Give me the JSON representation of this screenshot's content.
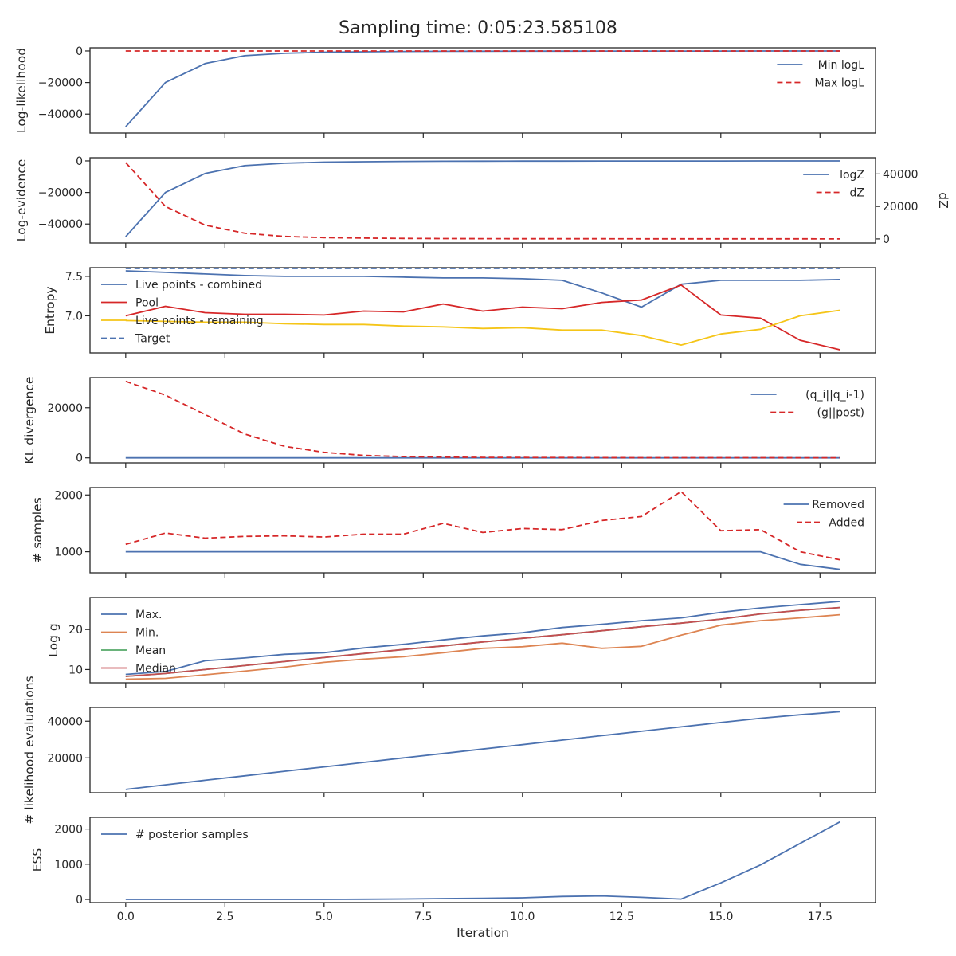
{
  "title": "Sampling time: 0:05:23.585108",
  "chart_data": [
    {
      "type": "line",
      "ylabel": "Log-likelihood",
      "ylim": [
        -52000,
        2000
      ],
      "yticks": [
        0,
        -20000,
        -40000
      ],
      "ytick_labels": [
        "0",
        "−20000",
        "−40000"
      ],
      "x": [
        0,
        1,
        2,
        3,
        4,
        5,
        6,
        7,
        8,
        9,
        10,
        11,
        12,
        13,
        14,
        15,
        16,
        17,
        18
      ],
      "legend_loc": "upper right",
      "series": [
        {
          "name": "Min logL",
          "color": "#4c72b0",
          "dash": "solid",
          "values": [
            -48000,
            -20000,
            -8000,
            -3000,
            -1500,
            -800,
            -500,
            -300,
            -200,
            -150,
            -120,
            -100,
            -80,
            -70,
            -60,
            -50,
            -40,
            -30,
            -20
          ]
        },
        {
          "name": "Max logL",
          "color": "#d62728",
          "dash": "dashed",
          "values": [
            0,
            0,
            0,
            0,
            0,
            0,
            0,
            0,
            0,
            0,
            0,
            0,
            0,
            0,
            0,
            0,
            0,
            0,
            0
          ]
        }
      ]
    },
    {
      "type": "line",
      "ylabel": "Log-evidence",
      "ylabel_right": "dZ",
      "ylim": [
        -52000,
        2000
      ],
      "yticks": [
        0,
        -20000,
        -40000
      ],
      "ytick_labels": [
        "0",
        "−20000",
        "−40000"
      ],
      "ylim_right": [
        -2500,
        50000
      ],
      "yticks_right": [
        0,
        20000,
        40000
      ],
      "ytick_labels_right": [
        "0",
        "20000",
        "40000"
      ],
      "x": [
        0,
        1,
        2,
        3,
        4,
        5,
        6,
        7,
        8,
        9,
        10,
        11,
        12,
        13,
        14,
        15,
        16,
        17,
        18
      ],
      "legend_loc": "upper right",
      "series": [
        {
          "name": "logZ",
          "color": "#4c72b0",
          "dash": "solid",
          "axis": "left",
          "values": [
            -48000,
            -20000,
            -8000,
            -3000,
            -1500,
            -800,
            -500,
            -300,
            -200,
            -150,
            -120,
            -100,
            -80,
            -70,
            -60,
            -50,
            -40,
            -30,
            -20
          ]
        },
        {
          "name": "dZ",
          "color": "#d62728",
          "dash": "dashed",
          "axis": "right",
          "values": [
            47000,
            20000,
            8500,
            3500,
            1500,
            800,
            500,
            300,
            200,
            150,
            120,
            100,
            80,
            70,
            60,
            50,
            40,
            30,
            20
          ]
        }
      ]
    },
    {
      "type": "line",
      "ylabel": "Entropy",
      "ylim": [
        6.53,
        7.61
      ],
      "yticks": [
        7.5,
        7.0
      ],
      "ytick_labels": [
        "7.5",
        "7.0"
      ],
      "x": [
        0,
        1,
        2,
        3,
        4,
        5,
        6,
        7,
        8,
        9,
        10,
        11,
        12,
        13,
        14,
        15,
        16,
        17,
        18
      ],
      "legend_loc": "upper left",
      "series": [
        {
          "name": "Live points - combined",
          "color": "#4c72b0",
          "dash": "solid",
          "values": [
            7.57,
            7.55,
            7.53,
            7.51,
            7.5,
            7.5,
            7.5,
            7.49,
            7.48,
            7.48,
            7.47,
            7.45,
            7.29,
            7.11,
            7.4,
            7.45,
            7.45,
            7.45,
            7.46
          ]
        },
        {
          "name": "Pool",
          "color": "#d62728",
          "dash": "solid",
          "values": [
            7.0,
            7.12,
            7.04,
            7.02,
            7.02,
            7.01,
            7.06,
            7.05,
            7.15,
            7.06,
            7.11,
            7.09,
            7.17,
            7.2,
            7.39,
            7.01,
            6.97,
            6.69,
            6.57
          ]
        },
        {
          "name": "Live points - remaining",
          "color": "#f5c518",
          "dash": "solid",
          "values": [
            6.94,
            6.93,
            6.92,
            6.92,
            6.9,
            6.89,
            6.89,
            6.87,
            6.86,
            6.84,
            6.85,
            6.82,
            6.82,
            6.75,
            6.63,
            6.77,
            6.83,
            7.0,
            7.07
          ]
        },
        {
          "name": "Target",
          "color": "#4c72b0",
          "dash": "dashed",
          "values": [
            7.6,
            7.6,
            7.6,
            7.6,
            7.6,
            7.6,
            7.6,
            7.6,
            7.6,
            7.6,
            7.6,
            7.6,
            7.6,
            7.6,
            7.6,
            7.6,
            7.6,
            7.6,
            7.6
          ]
        }
      ]
    },
    {
      "type": "line",
      "ylabel": "KL divergence",
      "ylim": [
        -2000,
        32000
      ],
      "yticks": [
        20000,
        0
      ],
      "ytick_labels": [
        "20000",
        "0"
      ],
      "x": [
        0,
        1,
        2,
        3,
        4,
        5,
        6,
        7,
        8,
        9,
        10,
        11,
        12,
        13,
        14,
        15,
        16,
        17,
        18
      ],
      "legend_loc": "upper right",
      "series": [
        {
          "name": "(q_i||q_i-1)",
          "color": "#4c72b0",
          "dash": "solid",
          "values": [
            0,
            0,
            0,
            0,
            0,
            0,
            0,
            0,
            0,
            0,
            0,
            0,
            0,
            0,
            0,
            0,
            0,
            0,
            0
          ]
        },
        {
          "name": "(g||post)",
          "color": "#d62728",
          "dash": "dashed",
          "values": [
            30500,
            25000,
            17300,
            9500,
            4600,
            2200,
            1000,
            500,
            300,
            200,
            150,
            120,
            100,
            80,
            70,
            60,
            50,
            40,
            30
          ]
        }
      ]
    },
    {
      "type": "line",
      "ylabel": "# samples",
      "ylim": [
        630,
        2130
      ],
      "yticks": [
        2000,
        1000
      ],
      "ytick_labels": [
        "2000",
        "1000"
      ],
      "x": [
        0,
        1,
        2,
        3,
        4,
        5,
        6,
        7,
        8,
        9,
        10,
        11,
        12,
        13,
        14,
        15,
        16,
        17,
        18
      ],
      "legend_loc": "upper right",
      "series": [
        {
          "name": "Removed",
          "color": "#4c72b0",
          "dash": "solid",
          "values": [
            1000,
            1000,
            1000,
            1000,
            1000,
            1000,
            1000,
            1000,
            1000,
            1000,
            1000,
            1000,
            1000,
            1000,
            1000,
            1000,
            1000,
            780,
            690
          ]
        },
        {
          "name": "Added",
          "color": "#d62728",
          "dash": "dashed",
          "values": [
            1130,
            1330,
            1240,
            1270,
            1280,
            1260,
            1310,
            1310,
            1500,
            1340,
            1410,
            1390,
            1550,
            1620,
            2060,
            1370,
            1390,
            1000,
            860
          ]
        }
      ]
    },
    {
      "type": "line",
      "ylabel": "Log g",
      "ylim": [
        6.7,
        28.0
      ],
      "yticks": [
        20,
        10
      ],
      "ytick_labels": [
        "20",
        "10"
      ],
      "x": [
        0,
        1,
        2,
        3,
        4,
        5,
        6,
        7,
        8,
        9,
        10,
        11,
        12,
        13,
        14,
        15,
        16,
        17,
        18
      ],
      "legend_loc": "upper left",
      "series": [
        {
          "name": "Max.",
          "color": "#4c72b0",
          "dash": "solid",
          "values": [
            8.8,
            9.5,
            12.2,
            12.9,
            13.8,
            14.2,
            15.4,
            16.3,
            17.4,
            18.4,
            19.2,
            20.5,
            21.3,
            22.2,
            22.9,
            24.3,
            25.4,
            26.2,
            27.0
          ]
        },
        {
          "name": "Min.",
          "color": "#dd8452",
          "dash": "solid",
          "values": [
            7.6,
            7.8,
            8.7,
            9.6,
            10.6,
            11.8,
            12.6,
            13.2,
            14.2,
            15.3,
            15.7,
            16.6,
            15.3,
            15.8,
            18.6,
            21.1,
            22.2,
            22.9,
            23.7
          ]
        },
        {
          "name": "Mean",
          "color": "#55a868",
          "dash": "solid",
          "values": [
            8.3,
            9.0,
            10.0,
            11.0,
            12.0,
            13.0,
            14.0,
            15.0,
            15.9,
            16.9,
            17.8,
            18.7,
            19.7,
            20.7,
            21.6,
            22.6,
            23.9,
            24.8,
            25.5
          ]
        },
        {
          "name": "Median",
          "color": "#c44e52",
          "dash": "solid",
          "values": [
            8.3,
            9.0,
            10.0,
            11.0,
            12.0,
            13.0,
            14.0,
            15.0,
            15.9,
            16.9,
            17.8,
            18.7,
            19.7,
            20.7,
            21.6,
            22.6,
            23.9,
            24.8,
            25.5
          ]
        }
      ]
    },
    {
      "type": "line",
      "ylabel": "# likelihood evaluations",
      "ylim": [
        1000,
        47500
      ],
      "yticks": [
        40000,
        20000
      ],
      "ytick_labels": [
        "40000",
        "20000"
      ],
      "x": [
        0,
        1,
        2,
        3,
        4,
        5,
        6,
        7,
        8,
        9,
        10,
        11,
        12,
        13,
        14,
        15,
        16,
        17,
        18
      ],
      "legend_loc": "none",
      "series": [
        {
          "name": "",
          "color": "#4c72b0",
          "dash": "solid",
          "values": [
            2800,
            5300,
            7800,
            10200,
            12700,
            15100,
            17500,
            20000,
            22400,
            24800,
            27200,
            29700,
            32100,
            34500,
            36900,
            39300,
            41600,
            43500,
            45200
          ]
        }
      ]
    },
    {
      "type": "line",
      "ylabel": "ESS",
      "xlabel": "Iteration",
      "ylim": [
        -90,
        2330
      ],
      "yticks": [
        2000,
        1000,
        0
      ],
      "ytick_labels": [
        "2000",
        "1000",
        "0"
      ],
      "xticks": [
        0,
        2.5,
        5,
        7.5,
        10,
        12.5,
        15,
        17.5
      ],
      "xtick_labels": [
        "0.0",
        "2.5",
        "5.0",
        "7.5",
        "10.0",
        "12.5",
        "15.0",
        "17.5"
      ],
      "x": [
        0,
        1,
        2,
        3,
        4,
        5,
        6,
        7,
        8,
        9,
        10,
        11,
        12,
        13,
        14,
        15,
        16,
        17,
        18
      ],
      "legend_loc": "upper left",
      "series": [
        {
          "name": "# posterior samples",
          "color": "#4c72b0",
          "dash": "solid",
          "values": [
            0,
            0,
            0,
            0,
            0,
            1,
            5,
            12,
            22,
            30,
            45,
            85,
            100,
            60,
            10,
            470,
            980,
            1590,
            2200
          ]
        }
      ]
    }
  ]
}
